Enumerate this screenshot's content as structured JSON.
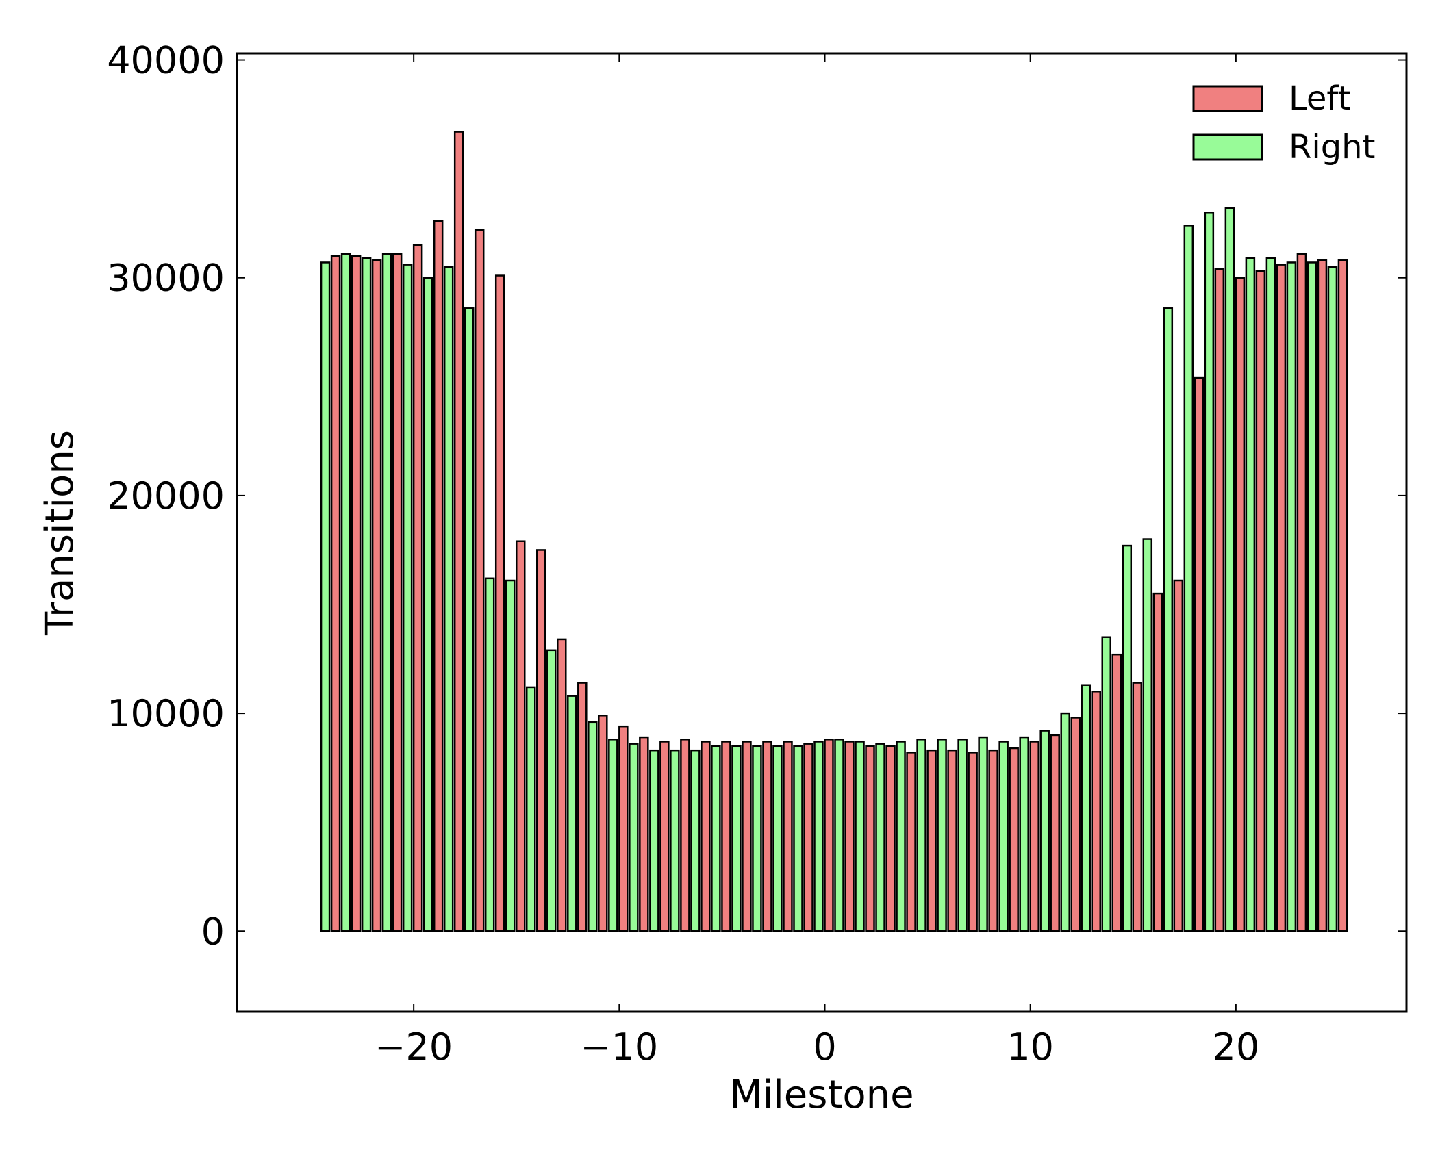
{
  "chart_data": {
    "type": "bar",
    "title": "",
    "xlabel": "Milestone",
    "ylabel": "Transitions",
    "xlim": [
      -28.6,
      28.3
    ],
    "ylim": [
      -3700,
      40300
    ],
    "xticks": [
      -20,
      -10,
      0,
      10,
      20
    ],
    "xtick_labels": [
      "−20",
      "−10",
      "0",
      "10",
      "20"
    ],
    "yticks": [
      0,
      10000,
      20000,
      30000,
      40000
    ],
    "ytick_labels": [
      "0",
      "10000",
      "20000",
      "30000",
      "40000"
    ],
    "grid": false,
    "legend": {
      "position": "top-right"
    },
    "series": [
      {
        "name": "Left",
        "color": "#f08080",
        "x": [
          -24,
          -23,
          -22,
          -21,
          -20,
          -19,
          -18,
          -17,
          -16,
          -15,
          -14,
          -13,
          -12,
          -11,
          -10,
          -9,
          -8,
          -7,
          -6,
          -5,
          -4,
          -3,
          -2,
          -1,
          0,
          1,
          2,
          3,
          4,
          5,
          6,
          7,
          8,
          9,
          10,
          11,
          12,
          13,
          14,
          15,
          16,
          17,
          18,
          19,
          20,
          21,
          22,
          23,
          24,
          25
        ],
        "values": [
          31000,
          31000,
          30800,
          31100,
          31500,
          32600,
          36700,
          32200,
          30100,
          17900,
          17500,
          13400,
          11400,
          9900,
          9400,
          8900,
          8700,
          8800,
          8700,
          8700,
          8700,
          8700,
          8700,
          8600,
          8800,
          8700,
          8500,
          8500,
          8200,
          8300,
          8300,
          8200,
          8300,
          8400,
          8700,
          9000,
          9800,
          11000,
          12700,
          11400,
          15500,
          16100,
          25400,
          30400,
          30000,
          30300,
          30600,
          31100,
          30800,
          30800
        ]
      },
      {
        "name": "Right",
        "color": "#98fb98",
        "x": [
          -24.5,
          -23.5,
          -22.5,
          -21.5,
          -20.5,
          -19.5,
          -18.5,
          -17.5,
          -16.5,
          -15.5,
          -14.5,
          -13.5,
          -12.5,
          -11.5,
          -10.5,
          -9.5,
          -8.5,
          -7.5,
          -6.5,
          -5.5,
          -4.5,
          -3.5,
          -2.5,
          -1.5,
          -0.5,
          0.5,
          1.5,
          2.5,
          3.5,
          4.5,
          5.5,
          6.5,
          7.5,
          8.5,
          9.5,
          10.5,
          11.5,
          12.5,
          13.5,
          14.5,
          15.5,
          16.5,
          17.5,
          18.5,
          19.5,
          20.5,
          21.5,
          22.5,
          23.5,
          24.5
        ],
        "values": [
          30700,
          31100,
          30900,
          31100,
          30600,
          30000,
          30500,
          28600,
          16200,
          16100,
          11200,
          12900,
          10800,
          9600,
          8800,
          8600,
          8300,
          8300,
          8300,
          8500,
          8500,
          8500,
          8500,
          8500,
          8700,
          8800,
          8700,
          8600,
          8700,
          8800,
          8800,
          8800,
          8900,
          8700,
          8900,
          9200,
          10000,
          11300,
          13500,
          17700,
          18000,
          28600,
          32400,
          33000,
          33200,
          30900,
          30900,
          30700,
          30700,
          30500
        ]
      }
    ]
  }
}
